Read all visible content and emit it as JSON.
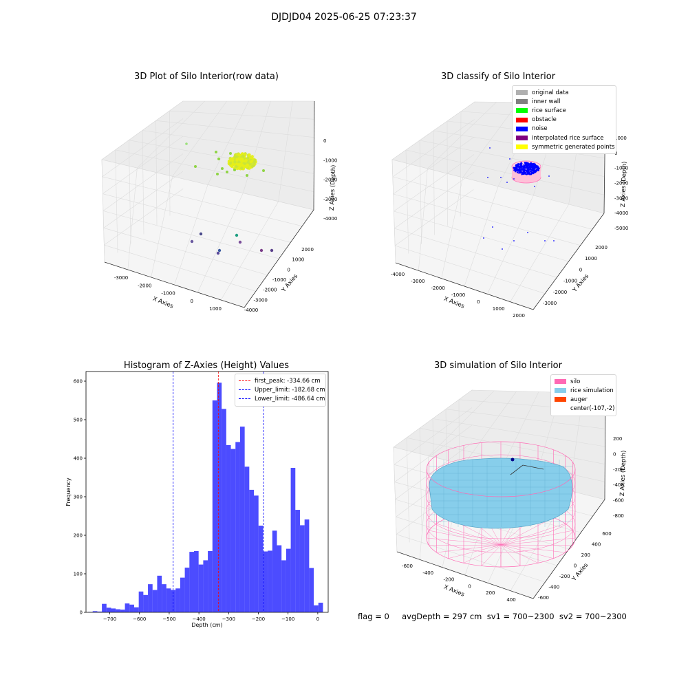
{
  "suptitle": "DJDJD04 2025-06-25 07:23:37",
  "panel1": {
    "title": "3D Plot of Silo Interior(row data)",
    "xlabel": "X Axies",
    "ylabel": "Y Axies",
    "zlabel": "Z Axies (Depth)",
    "xticks": [
      "-3000",
      "-2000",
      "-1000",
      "0",
      "1000"
    ],
    "yticks": [
      "2000",
      "1000",
      "0",
      "-1000",
      "-2000",
      "-3000",
      "-4000"
    ],
    "zticks": [
      "0",
      "-1000",
      "-2000",
      "-3000",
      "-4000"
    ]
  },
  "panel2": {
    "title": "3D classify of Silo Interior",
    "xlabel": "X Axies",
    "ylabel": "Y Axies",
    "zlabel": "Z Axies (Depth)",
    "xticks": [
      "-4000",
      "-3000",
      "-2000",
      "-1000",
      "0",
      "1000",
      "2000"
    ],
    "yticks": [
      "2000",
      "1000",
      "0",
      "-1000",
      "-2000",
      "-3000"
    ],
    "zticks": [
      "1000",
      "0",
      "-1000",
      "-2000",
      "-3000",
      "-4000",
      "-5000"
    ],
    "legend": [
      {
        "label": "original data",
        "color": "#b0b0b0"
      },
      {
        "label": "inner wall",
        "color": "#808080"
      },
      {
        "label": "rice surface",
        "color": "#00ff00"
      },
      {
        "label": "obstacle",
        "color": "#ff0000"
      },
      {
        "label": "noise",
        "color": "#0000ff"
      },
      {
        "label": "interpolated rice surface",
        "color": "#800080"
      },
      {
        "label": "symmetric generated points",
        "color": "#ffff00"
      }
    ]
  },
  "panel4": {
    "title": "3D simulation of Silo Interior",
    "xlabel": "X Axies",
    "ylabel": "Y Axies",
    "zlabel": "Z Axies (Depth)",
    "xticks": [
      "-600",
      "-400",
      "-200",
      "0",
      "200",
      "400"
    ],
    "yticks": [
      "600",
      "400",
      "200",
      "0",
      "-200",
      "-400",
      "-600"
    ],
    "zticks": [
      "200",
      "0",
      "-200",
      "-400",
      "-600",
      "-800"
    ],
    "legend": [
      {
        "label": "silo",
        "color": "#ff69b4"
      },
      {
        "label": "rice simulation",
        "color": "#87ceeb"
      },
      {
        "label": "auger",
        "color": "#ff4500"
      },
      {
        "label": "center(-107,-2)",
        "color": ""
      }
    ]
  },
  "bottom_text": "flag = 0     avgDepth = 297 cm  sv1 = 700~2300  sv2 = 700~2300",
  "chart_data": {
    "type": "bar",
    "title": "Histogram of Z-Axies (Height) Values",
    "xlabel": "Depth (cm)",
    "ylabel": "Frequency",
    "xlim": [
      -780,
      35
    ],
    "ylim": [
      0,
      625
    ],
    "xticks": [
      -700,
      -600,
      -500,
      -400,
      -300,
      -200,
      -100,
      0
    ],
    "yticks": [
      0,
      100,
      200,
      300,
      400,
      500,
      600
    ],
    "bar_color": "#0000ff",
    "bin_start": -773,
    "bin_width": 15.5,
    "values": [
      1,
      3,
      2,
      22,
      12,
      10,
      8,
      7,
      23,
      20,
      13,
      54,
      45,
      73,
      58,
      95,
      73,
      62,
      58,
      62,
      90,
      116,
      157,
      159,
      124,
      135,
      159,
      550,
      596,
      528,
      434,
      424,
      442,
      482,
      378,
      318,
      303,
      225,
      158,
      160,
      212,
      174,
      135,
      165,
      375,
      266,
      226,
      241,
      115,
      18,
      25
    ],
    "vlines": [
      {
        "label": "first_peak: -334.66 cm",
        "x": -334.66,
        "color": "#ff0000"
      },
      {
        "label": "Upper_limit: -182.68 cm",
        "x": -182.68,
        "color": "#0000ff"
      },
      {
        "label": "Lower_limit: -486.64 cm",
        "x": -486.64,
        "color": "#0000ff"
      }
    ]
  }
}
